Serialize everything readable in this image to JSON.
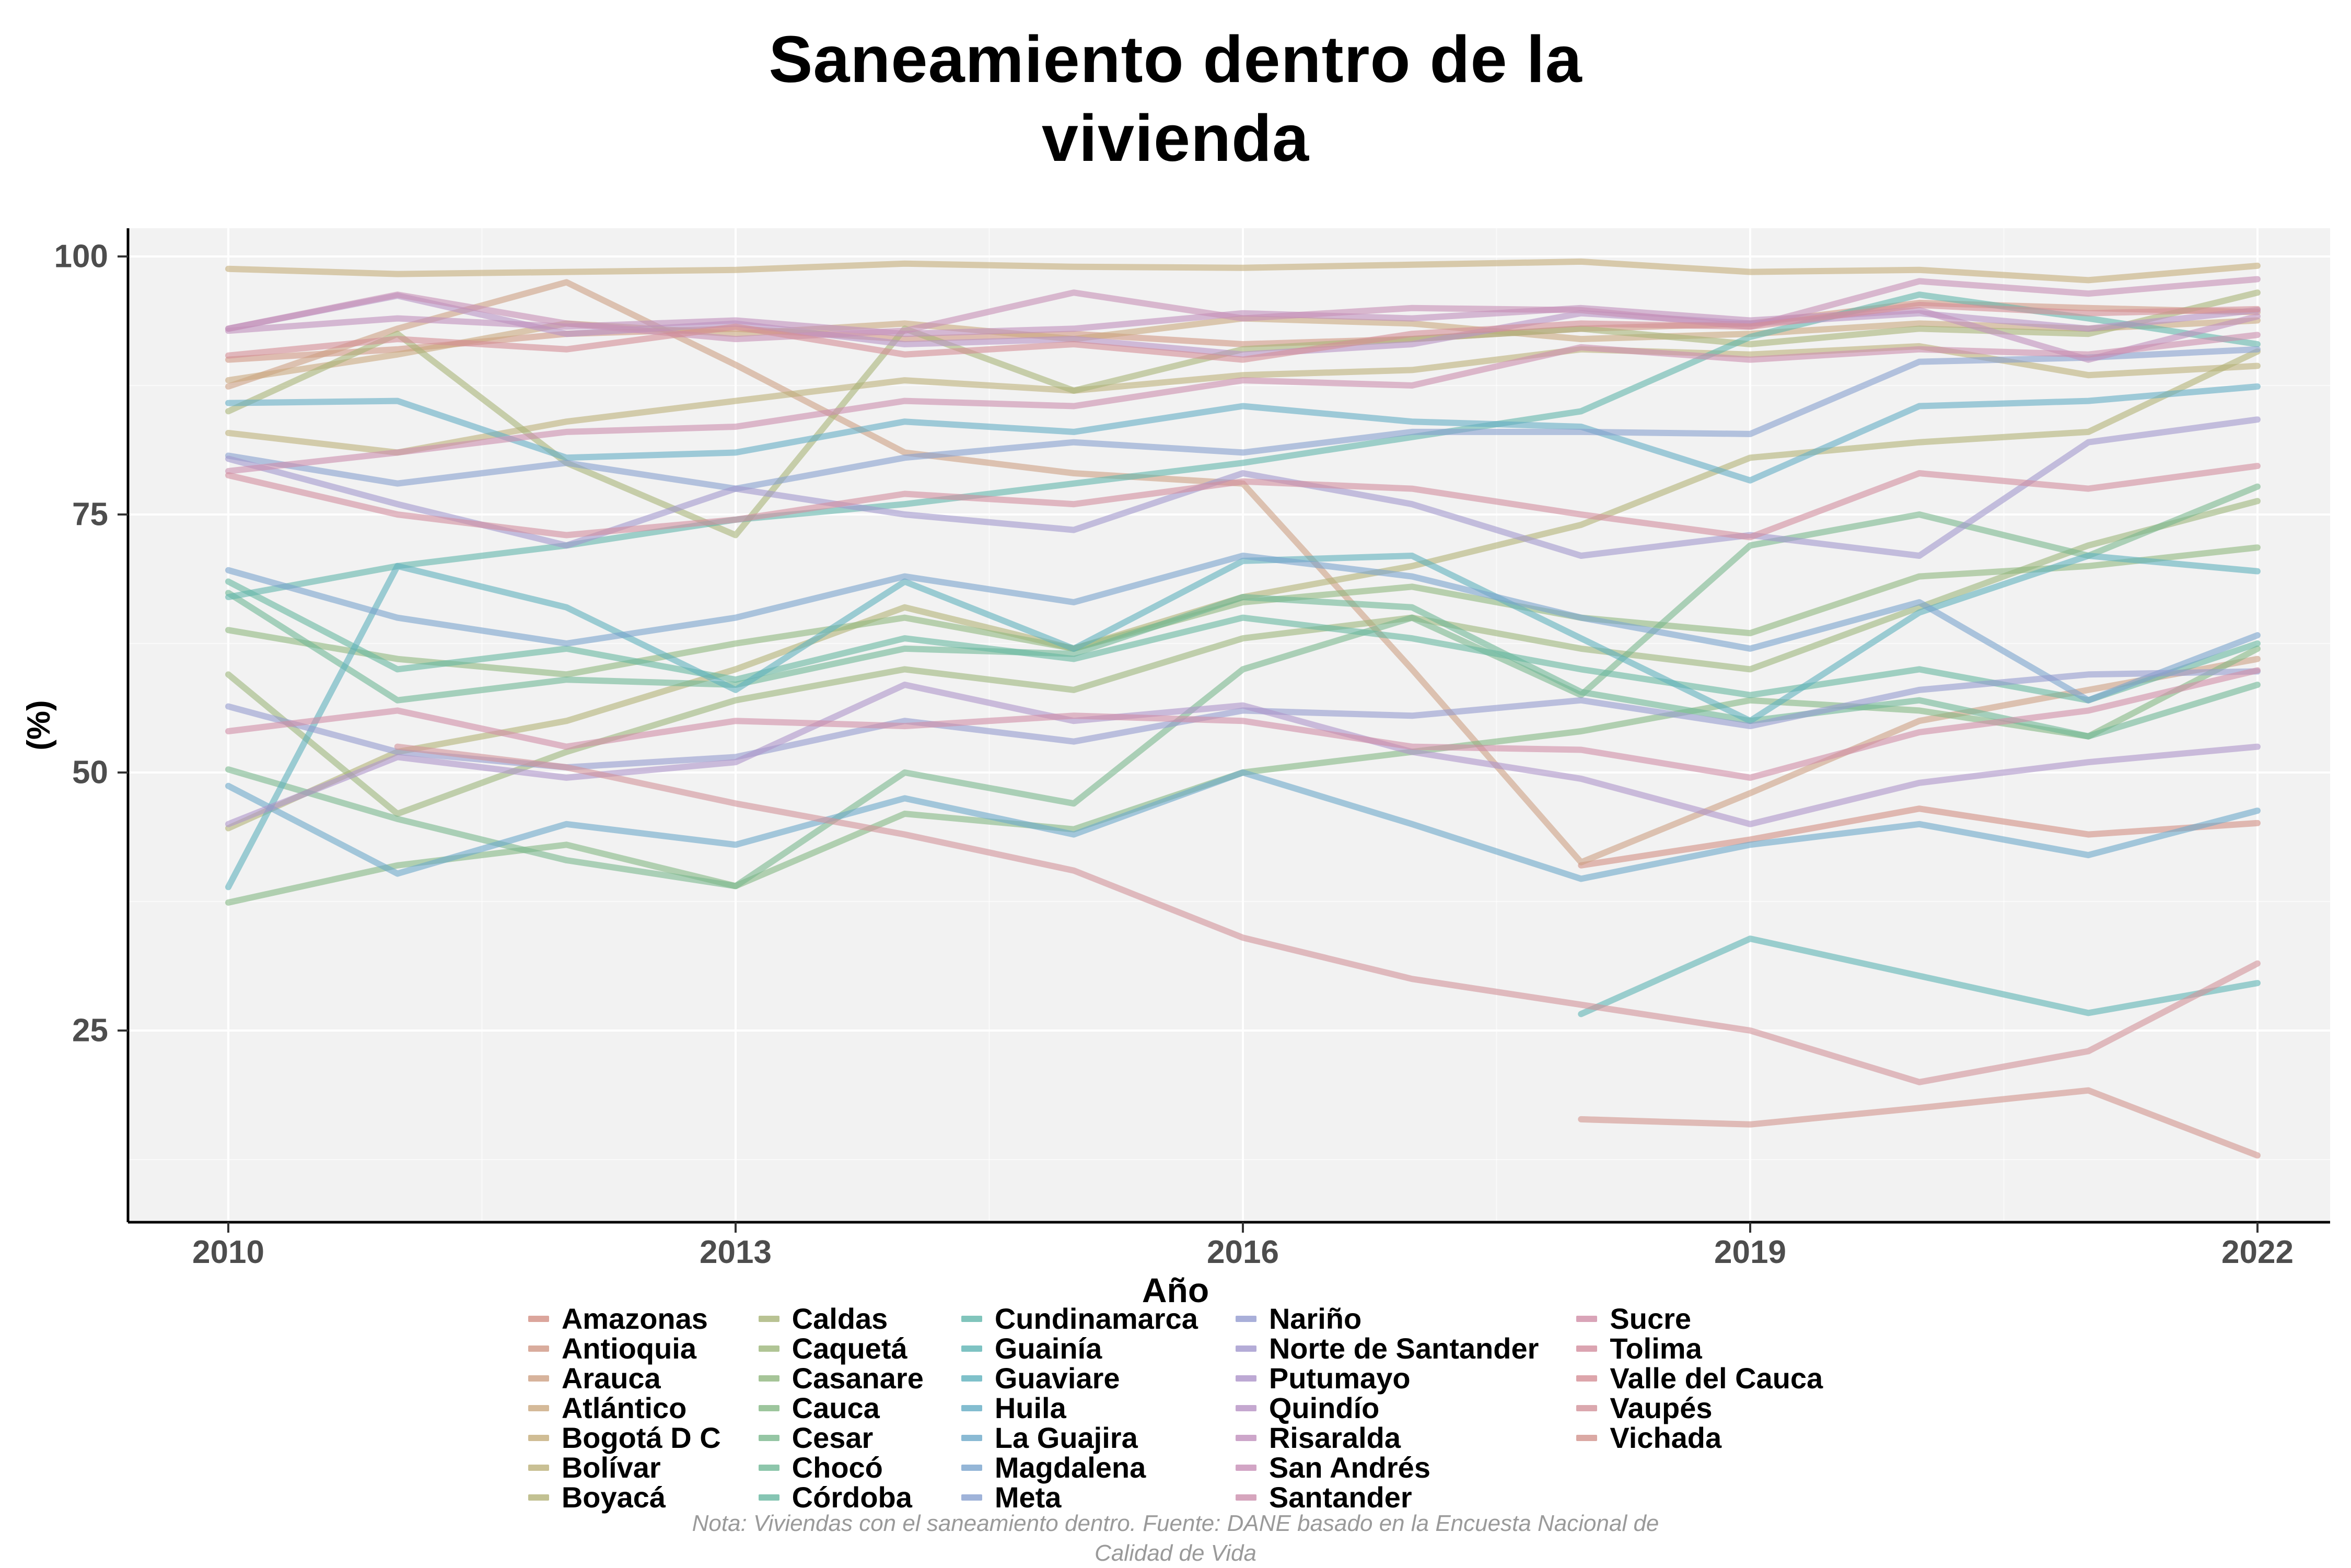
{
  "page": {
    "title": "Saneamiento dentro de la\nvivienda",
    "note": "Nota: Viviendas con el saneamiento dentro. Fuente: DANE basado en la Encuesta Nacional de Calidad de Vida"
  },
  "chart_data": {
    "type": "line",
    "title": "Saneamiento dentro de la vivienda",
    "xlabel": "Año",
    "ylabel": "(%)",
    "x": [
      2010,
      2011,
      2012,
      2013,
      2014,
      2015,
      2016,
      2017,
      2018,
      2019,
      2020,
      2021,
      2022
    ],
    "x_ticks": [
      2010,
      2013,
      2016,
      2019,
      2022
    ],
    "x_minor_ticks": [
      2011.5,
      2014.5,
      2017.5,
      2020.5
    ],
    "y_ticks": [
      25,
      50,
      75,
      100
    ],
    "y_minor_ticks": [
      12.5,
      37.5,
      62.5,
      87.5
    ],
    "ylim": [
      6,
      103
    ],
    "grid": "white major and minor gridlines on light gray panel",
    "panel_color": "#f2f2f2",
    "tick_label_color": "#4d4d4d",
    "legend_position": "bottom",
    "legend_columns": [
      7,
      7,
      7,
      7,
      5
    ],
    "line_width": 12,
    "line_opacity": 0.6,
    "series": [
      {
        "name": "Amazonas",
        "color": "#d28f83",
        "values": [
          null,
          null,
          null,
          null,
          null,
          null,
          null,
          null,
          41,
          43.5,
          46.5,
          44,
          45.1
        ]
      },
      {
        "name": "Antioquia",
        "color": "#d09784",
        "values": [
          90,
          91,
          92.5,
          93,
          92,
          92.5,
          91.5,
          92,
          93,
          93.5,
          95.5,
          95,
          94.6
        ]
      },
      {
        "name": "Arauca",
        "color": "#cda083",
        "values": [
          87.4,
          93,
          97.5,
          89.5,
          81,
          79,
          78,
          60,
          41.3,
          48,
          55,
          58,
          61
        ]
      },
      {
        "name": "Atlántico",
        "color": "#caa97f",
        "values": [
          88,
          90.5,
          93.5,
          92.5,
          93.5,
          92,
          94,
          93.5,
          92,
          92.5,
          93.5,
          93,
          93.8
        ]
      },
      {
        "name": "Bogotá D C",
        "color": "#c4ad7a",
        "values": [
          98.8,
          98.3,
          98.5,
          98.7,
          99.3,
          99,
          98.9,
          99.2,
          99.5,
          98.5,
          98.7,
          97.7,
          99.1
        ]
      },
      {
        "name": "Bolívar",
        "color": "#bcb079",
        "values": [
          82.9,
          81,
          84,
          86,
          88,
          87,
          88.5,
          89,
          91,
          90.5,
          91.3,
          88.5,
          89.4
        ]
      },
      {
        "name": "Boyacá",
        "color": "#b3b277",
        "values": [
          44.6,
          52,
          55,
          60,
          66,
          62,
          67,
          70,
          74,
          80.5,
          82,
          83,
          90.8
        ]
      },
      {
        "name": "Caldas",
        "color": "#a8b478",
        "values": [
          85,
          92.5,
          80,
          73,
          93,
          87,
          91,
          92,
          93,
          91.5,
          93,
          92.5,
          96.5
        ]
      },
      {
        "name": "Caquetá",
        "color": "#9cb67b",
        "values": [
          59.5,
          46,
          52,
          57,
          60,
          58,
          63,
          65,
          62,
          60,
          66,
          72,
          76.3
        ]
      },
      {
        "name": "Casanare",
        "color": "#90b77e",
        "values": [
          63.8,
          61,
          59.5,
          62.5,
          65,
          62,
          66.5,
          68,
          65,
          63.5,
          69,
          70,
          71.8
        ]
      },
      {
        "name": "Cauca",
        "color": "#84b884",
        "values": [
          37.4,
          41,
          43,
          39,
          46,
          44.5,
          50,
          52,
          54,
          57,
          56,
          53.5,
          62
        ]
      },
      {
        "name": "Cesar",
        "color": "#7ab88d",
        "values": [
          50.3,
          45.5,
          41.5,
          39,
          50,
          47,
          60,
          65,
          57.5,
          72,
          75,
          71,
          77.7
        ]
      },
      {
        "name": "Chocó",
        "color": "#70b896",
        "values": [
          67.4,
          57,
          59,
          58.5,
          62,
          61.5,
          67,
          66,
          57.8,
          55,
          57,
          53.5,
          58.5
        ]
      },
      {
        "name": "Córdoba",
        "color": "#68b7a0",
        "values": [
          68.5,
          60,
          62,
          59,
          63,
          61,
          65,
          63,
          60,
          57.5,
          60,
          57,
          62.5
        ]
      },
      {
        "name": "Cundinamarca",
        "color": "#62b6ab",
        "values": [
          67,
          70,
          72,
          74.5,
          76,
          78,
          80,
          82.5,
          85,
          92.2,
          96.3,
          94,
          91.5
        ]
      },
      {
        "name": "Guainía",
        "color": "#5eb4b4",
        "values": [
          null,
          null,
          null,
          null,
          null,
          null,
          null,
          null,
          26.6,
          33.9,
          30.3,
          26.7,
          29.6
        ]
      },
      {
        "name": "Guaviare",
        "color": "#5fb1bd",
        "values": [
          38.9,
          70,
          66,
          58,
          68.5,
          62,
          70.5,
          71,
          63,
          55,
          65.5,
          71,
          69.5
        ]
      },
      {
        "name": "Huila",
        "color": "#64adc4",
        "values": [
          85.8,
          86,
          80.5,
          81,
          84,
          83,
          85.5,
          84,
          83.5,
          78.3,
          85.5,
          86,
          87.4
        ]
      },
      {
        "name": "La Guajira",
        "color": "#6da9c9",
        "values": [
          48.7,
          40.2,
          45,
          43,
          47.5,
          44,
          50,
          45,
          39.7,
          43,
          45,
          42,
          46.3
        ]
      },
      {
        "name": "Magdalena",
        "color": "#79a4cd",
        "values": [
          69.6,
          65,
          62.5,
          65,
          69,
          66.5,
          71,
          69,
          65,
          62,
          66.5,
          57,
          63.3
        ]
      },
      {
        "name": "Meta",
        "color": "#87a0cf",
        "values": [
          80.7,
          78,
          80,
          77.5,
          80.5,
          82,
          81,
          83,
          83,
          82.8,
          89.8,
          90.2,
          91
        ]
      },
      {
        "name": "Nariño",
        "color": "#949bcf",
        "values": [
          56.4,
          52,
          50.5,
          51.5,
          55,
          53,
          56,
          55.5,
          57,
          54.5,
          58,
          59.5,
          59.8
        ]
      },
      {
        "name": "Norte de Santander",
        "color": "#a197cd",
        "values": [
          80.4,
          76,
          72,
          77.5,
          75,
          73.5,
          79,
          76,
          71,
          73,
          71,
          82,
          84.2
        ]
      },
      {
        "name": "Putumayo",
        "color": "#ad94c9",
        "values": [
          45,
          51.5,
          49.5,
          51,
          58.5,
          55,
          56.5,
          52,
          49.4,
          45,
          49,
          51,
          52.5
        ]
      },
      {
        "name": "Quindío",
        "color": "#b792c4",
        "values": [
          93,
          96.2,
          92.5,
          93.5,
          91.5,
          92,
          90.5,
          91.5,
          94.5,
          93.5,
          94.5,
          93,
          94.8
        ]
      },
      {
        "name": "Risaralda",
        "color": "#c090bd",
        "values": [
          92.8,
          94,
          93.2,
          93.8,
          92.5,
          93,
          94.5,
          94,
          95,
          93.8,
          94.8,
          90,
          94.2
        ]
      },
      {
        "name": "San Andrés",
        "color": "#c78fb6",
        "values": [
          93,
          96.3,
          93.5,
          92,
          92.8,
          96.5,
          94,
          95,
          94.8,
          93.2,
          97.6,
          96.4,
          97.8
        ]
      },
      {
        "name": "Santander",
        "color": "#cc8ead",
        "values": [
          79.2,
          81,
          83,
          83.5,
          86,
          85.5,
          88,
          87.5,
          91.2,
          90,
          91,
          90.5,
          92.4
        ]
      },
      {
        "name": "Sucre",
        "color": "#d08da6",
        "values": [
          54,
          56,
          52.5,
          55,
          54.5,
          55.5,
          55,
          52.5,
          52.2,
          49.5,
          53.9,
          56,
          59.9
        ]
      },
      {
        "name": "Tolima",
        "color": "#d28d9e",
        "values": [
          78.8,
          75,
          73,
          74.5,
          77,
          76,
          78.2,
          77.5,
          75,
          72.8,
          79,
          77.5,
          79.7
        ]
      },
      {
        "name": "Valle del Cauca",
        "color": "#d48e96",
        "values": [
          90.4,
          92,
          91,
          93.2,
          90.5,
          91.5,
          90,
          92.5,
          93.5,
          93.2,
          95.3,
          94.5,
          94.9
        ]
      },
      {
        "name": "Vaupés",
        "color": "#d2929a",
        "values": [
          null,
          52.5,
          50.5,
          47,
          44,
          40.5,
          34,
          30,
          27.5,
          25,
          20,
          23,
          31.5
        ]
      },
      {
        "name": "Vichada",
        "color": "#d2948d",
        "values": [
          null,
          null,
          null,
          null,
          null,
          null,
          null,
          null,
          16.4,
          15.9,
          17.5,
          19.2,
          12.9
        ]
      }
    ]
  }
}
